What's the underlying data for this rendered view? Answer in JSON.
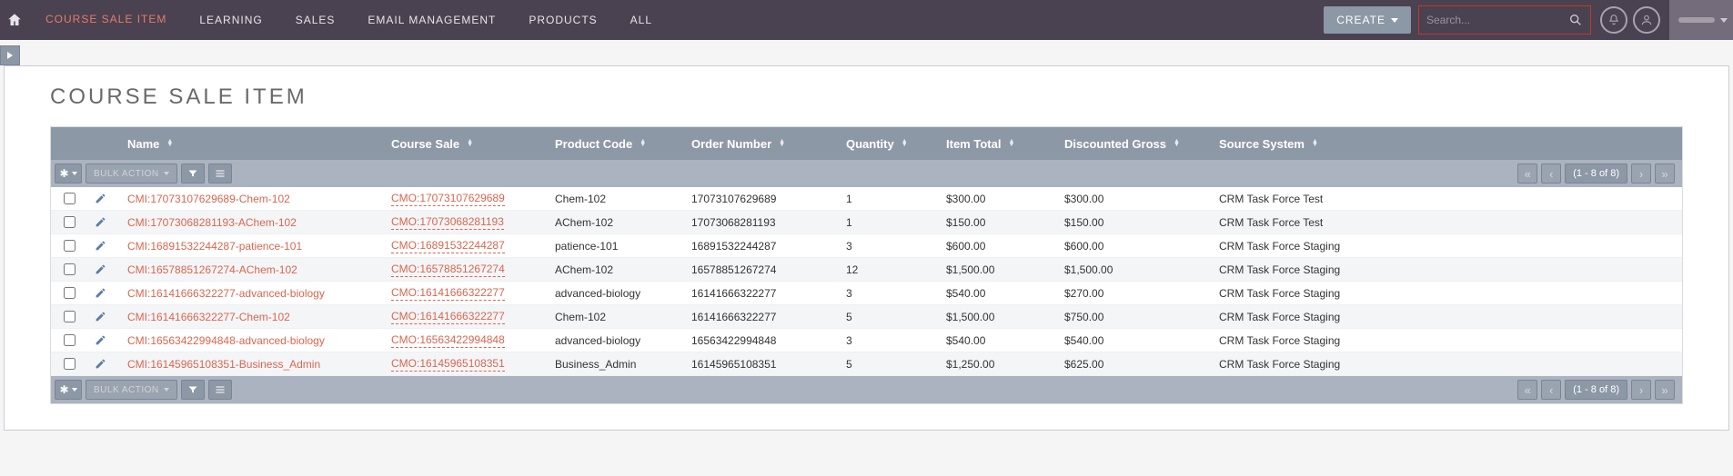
{
  "nav": {
    "items": [
      "COURSE SALE ITEM",
      "LEARNING",
      "SALES",
      "EMAIL MANAGEMENT",
      "PRODUCTS",
      "ALL"
    ],
    "active_index": 0,
    "create_label": "CREATE",
    "search_placeholder": "Search..."
  },
  "page": {
    "title": "COURSE SALE ITEM"
  },
  "columns": [
    "Name",
    "Course Sale",
    "Product Code",
    "Order Number",
    "Quantity",
    "Item Total",
    "Discounted Gross",
    "Source System"
  ],
  "toolbar": {
    "bulk_label": "BULK ACTION",
    "range": "(1 - 8 of 8)"
  },
  "rows": [
    {
      "name": "CMI:17073107629689-Chem-102",
      "sale": "CMO:17073107629689",
      "prod": "Chem-102",
      "order": "17073107629689",
      "qty": "1",
      "itot": "$300.00",
      "disc": "$300.00",
      "src": "CRM Task Force Test"
    },
    {
      "name": "CMI:17073068281193-AChem-102",
      "sale": "CMO:17073068281193",
      "prod": "AChem-102",
      "order": "17073068281193",
      "qty": "1",
      "itot": "$150.00",
      "disc": "$150.00",
      "src": "CRM Task Force Test"
    },
    {
      "name": "CMI:16891532244287-patience-101",
      "sale": "CMO:16891532244287",
      "prod": "patience-101",
      "order": "16891532244287",
      "qty": "3",
      "itot": "$600.00",
      "disc": "$600.00",
      "src": "CRM Task Force Staging"
    },
    {
      "name": "CMI:16578851267274-AChem-102",
      "sale": "CMO:16578851267274",
      "prod": "AChem-102",
      "order": "16578851267274",
      "qty": "12",
      "itot": "$1,500.00",
      "disc": "$1,500.00",
      "src": "CRM Task Force Staging"
    },
    {
      "name": "CMI:16141666322277-advanced-biology",
      "sale": "CMO:16141666322277",
      "prod": "advanced-biology",
      "order": "16141666322277",
      "qty": "3",
      "itot": "$540.00",
      "disc": "$270.00",
      "src": "CRM Task Force Staging"
    },
    {
      "name": "CMI:16141666322277-Chem-102",
      "sale": "CMO:16141666322277",
      "prod": "Chem-102",
      "order": "16141666322277",
      "qty": "5",
      "itot": "$1,500.00",
      "disc": "$750.00",
      "src": "CRM Task Force Staging"
    },
    {
      "name": "CMI:16563422994848-advanced-biology",
      "sale": "CMO:16563422994848",
      "prod": "advanced-biology",
      "order": "16563422994848",
      "qty": "3",
      "itot": "$540.00",
      "disc": "$540.00",
      "src": "CRM Task Force Staging"
    },
    {
      "name": "CMI:16145965108351-Business_Admin",
      "sale": "CMO:16145965108351",
      "prod": "Business_Admin",
      "order": "16145965108351",
      "qty": "5",
      "itot": "$1,250.00",
      "disc": "$625.00",
      "src": "CRM Task Force Staging"
    }
  ],
  "colors": {
    "nav_bg": "#4a4250",
    "accent": "#e77b6b",
    "link": "#d9664f",
    "header_bg": "#8d98a7",
    "toolbar_bg": "#aab3bf"
  }
}
